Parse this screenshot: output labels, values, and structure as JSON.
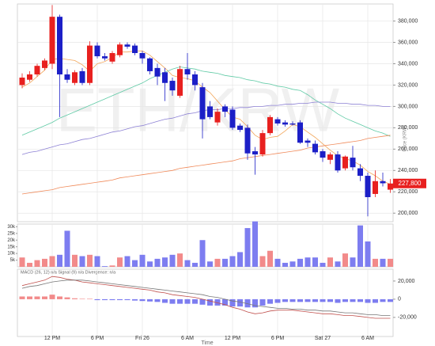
{
  "chart_data": [
    {
      "type": "candlestick",
      "title": "ETH/KRW",
      "y_label": "Price (KRW)",
      "x_label": "Time",
      "categories": [
        null,
        null,
        null,
        null,
        "12 PM",
        null,
        null,
        null,
        null,
        null,
        "6 PM",
        null,
        null,
        null,
        null,
        null,
        "Fri 26",
        null,
        null,
        null,
        null,
        null,
        "6 AM",
        null,
        null,
        null,
        null,
        null,
        "12 PM",
        null,
        null,
        null,
        null,
        null,
        "6 PM",
        null,
        null,
        null,
        null,
        null,
        "Sat 27",
        null,
        null,
        null,
        null,
        null,
        "6 AM",
        null,
        null,
        null
      ],
      "open": [
        320000,
        325000,
        330000,
        336000,
        340000,
        384000,
        330000,
        322000,
        333000,
        322000,
        357000,
        347000,
        342000,
        348000,
        358000,
        357000,
        350000,
        345000,
        336000,
        332000,
        324000,
        310000,
        335000,
        330000,
        318000,
        300000,
        285000,
        300000,
        297000,
        282000,
        280000,
        258000,
        255000,
        275000,
        288000,
        285000,
        284000,
        285000,
        268000,
        265000,
        258000,
        250000,
        255000,
        242000,
        252000,
        242000,
        235000,
        218000,
        230000,
        222000
      ],
      "high": [
        331000,
        333000,
        340000,
        345000,
        395000,
        386000,
        335000,
        334000,
        336000,
        361000,
        360000,
        350000,
        352000,
        360000,
        360000,
        359000,
        352000,
        346000,
        340000,
        336000,
        327000,
        338000,
        350000,
        333000,
        322000,
        305000,
        298000,
        302000,
        300000,
        284000,
        283000,
        262000,
        278000,
        292000,
        290000,
        287000,
        286000,
        287000,
        270000,
        268000,
        260000,
        257000,
        258000,
        254000,
        263000,
        246000,
        238000,
        240000,
        238000,
        232000
      ],
      "low": [
        317000,
        323000,
        328000,
        334000,
        335000,
        290000,
        322000,
        320000,
        320000,
        320000,
        345000,
        343000,
        340000,
        346000,
        354000,
        348000,
        340000,
        330000,
        320000,
        305000,
        310000,
        308000,
        325000,
        315000,
        270000,
        288000,
        282000,
        290000,
        278000,
        276000,
        250000,
        236000,
        253000,
        273000,
        282000,
        281000,
        282000,
        265000,
        262000,
        255000,
        248000,
        246000,
        238000,
        240000,
        240000,
        230000,
        197000,
        215000,
        225000,
        219000
      ],
      "close": [
        327000,
        330000,
        338000,
        343000,
        384000,
        330000,
        325000,
        332000,
        322000,
        357000,
        347000,
        345000,
        350000,
        358000,
        356000,
        350000,
        345000,
        333000,
        328000,
        322000,
        315000,
        335000,
        330000,
        320000,
        288000,
        290000,
        295000,
        295000,
        280000,
        278000,
        256000,
        255000,
        275000,
        290000,
        284000,
        283000,
        283000,
        266000,
        266000,
        257000,
        252000,
        255000,
        240000,
        253000,
        243000,
        235000,
        215000,
        230000,
        228000,
        227800
      ],
      "up_color": "#e8201f",
      "down_color": "#1c1fc7",
      "last_price": {
        "value": 227800,
        "label": "227,800"
      },
      "series": [
        {
          "color": "#f2a65a",
          "values": [
            318000,
            322000,
            328000,
            334000,
            344000,
            345000,
            344000,
            343000,
            339000,
            333000,
            340000,
            342000,
            346000,
            351000,
            351000,
            352000,
            352000,
            348000,
            342000,
            336000,
            329000,
            327000,
            326000,
            324000,
            318000,
            313000,
            305000,
            297000,
            290000,
            288000,
            281000,
            273000,
            269000,
            271000,
            272000,
            277000,
            283000,
            281000,
            276000,
            271000,
            265000,
            259000,
            254000,
            251000,
            249000,
            245000,
            239000,
            235000,
            230000,
            227000
          ]
        },
        {
          "color": "#5fcaa5",
          "values": [
            273000,
            276000,
            279000,
            282000,
            285000,
            289000,
            292000,
            295000,
            298000,
            301000,
            304000,
            307000,
            310000,
            313000,
            316000,
            319000,
            322000,
            326000,
            329000,
            332000,
            335000,
            337000,
            336000,
            335000,
            333000,
            332000,
            331000,
            329000,
            328000,
            327000,
            325000,
            324000,
            322000,
            321000,
            319000,
            318000,
            316000,
            315000,
            311000,
            306000,
            302000,
            298000,
            293000,
            289000,
            286000,
            283000,
            280000,
            277000,
            275000,
            272000
          ]
        },
        {
          "color": "#8c80d4",
          "values": [
            255000,
            257000,
            258000,
            260000,
            262000,
            264000,
            265000,
            267000,
            269000,
            270000,
            272000,
            274000,
            276000,
            277000,
            279000,
            281000,
            282000,
            284000,
            286000,
            288000,
            289000,
            291000,
            293000,
            294000,
            296000,
            297000,
            297000,
            298000,
            298000,
            299000,
            299000,
            300000,
            300000,
            301000,
            301000,
            302000,
            302000,
            303000,
            303000,
            304000,
            304000,
            304000,
            303000,
            303000,
            302000,
            302000,
            301000,
            301000,
            300000,
            300000
          ]
        },
        {
          "color": "#f08a5a",
          "values": [
            218000,
            219000,
            220000,
            221000,
            222000,
            224000,
            225000,
            226000,
            227000,
            228000,
            229000,
            230000,
            231000,
            233000,
            234000,
            235000,
            236000,
            237000,
            238000,
            239000,
            240000,
            242000,
            243000,
            244000,
            245000,
            246000,
            247000,
            248000,
            249000,
            251000,
            252000,
            253000,
            254000,
            255000,
            256000,
            257000,
            258000,
            259000,
            261000,
            262000,
            263000,
            264000,
            265000,
            266000,
            267000,
            268000,
            270000,
            271000,
            272000,
            273000
          ]
        }
      ],
      "ylim": [
        192000,
        396000
      ],
      "yticks": [
        {
          "value": 200000,
          "label": "200,000"
        },
        {
          "value": 220000,
          "label": "220,000"
        },
        {
          "value": 240000,
          "label": "240,000"
        },
        {
          "value": 260000,
          "label": "260,000"
        },
        {
          "value": 280000,
          "label": "280,000"
        },
        {
          "value": 300000,
          "label": "300,000"
        },
        {
          "value": 320000,
          "label": "320,000"
        },
        {
          "value": 340000,
          "label": "340,000"
        },
        {
          "value": 360000,
          "label": "360,000"
        },
        {
          "value": 380000,
          "label": "380,000"
        }
      ],
      "grid": true
    },
    {
      "type": "bar",
      "values": [
        7000,
        3000,
        5000,
        6000,
        8000,
        9000,
        27000,
        9000,
        8000,
        9000,
        8000,
        500,
        1000,
        7000,
        8000,
        5000,
        9000,
        4000,
        6000,
        7000,
        9000,
        10000,
        5000,
        3000,
        20000,
        4000,
        6000,
        6000,
        8000,
        11000,
        29000,
        34000,
        8000,
        12000,
        6000,
        3000,
        4000,
        6000,
        7000,
        7000,
        3000,
        7000,
        4000,
        10000,
        7000,
        31000,
        19000,
        6000,
        6000,
        6000
      ],
      "up_color": "#f28a8a",
      "down_color": "#7d7df0",
      "ylim": [
        0,
        32000
      ],
      "yticks": [
        {
          "value": 5000,
          "label": "5k"
        },
        {
          "value": 10000,
          "label": "10k"
        },
        {
          "value": 15000,
          "label": "15k"
        },
        {
          "value": 20000,
          "label": "20k"
        },
        {
          "value": 25000,
          "label": "25k"
        },
        {
          "value": 30000,
          "label": "30k"
        }
      ]
    },
    {
      "type": "macd",
      "legend": "MACD (26, 12) n/a  Signal (9) n/a  Divergence: n/a",
      "histogram": [
        3000,
        3000,
        3000,
        3000,
        5000,
        3000,
        2000,
        1000,
        500,
        500,
        -1000,
        -1000,
        -1000,
        -1000,
        -1000,
        -1500,
        -2000,
        -2500,
        -3000,
        -4000,
        -5000,
        -5000,
        -5000,
        -5000,
        -6000,
        -7000,
        -7000,
        -7000,
        -8000,
        -8000,
        -9000,
        -9000,
        -7000,
        -5000,
        -4000,
        -3000,
        -3000,
        -3000,
        -3000,
        -3000,
        -3000,
        -3000,
        -4000,
        -3000,
        -3000,
        -3000,
        -4000,
        -4000,
        -3000,
        -3000
      ],
      "up_color": "#f28a8a",
      "down_color": "#7d7df0",
      "series": [
        {
          "color": "#c0504d",
          "values": [
            15000,
            17000,
            19000,
            21000,
            25000,
            24000,
            22000,
            21000,
            19000,
            18000,
            17000,
            16000,
            15000,
            14000,
            13000,
            12000,
            11000,
            10000,
            8000,
            7000,
            5000,
            4000,
            3000,
            2000,
            0,
            -2000,
            -4000,
            -6000,
            -9000,
            -11000,
            -14000,
            -16000,
            -15000,
            -13000,
            -12000,
            -12000,
            -12000,
            -13000,
            -14000,
            -15000,
            -16000,
            -16000,
            -17000,
            -18000,
            -18000,
            -19000,
            -20000,
            -21000,
            -21000,
            -21000
          ]
        },
        {
          "color": "#777777",
          "values": [
            12000,
            14000,
            15000,
            17000,
            19000,
            20000,
            21000,
            21000,
            21000,
            20000,
            19000,
            18000,
            17000,
            16000,
            15000,
            14000,
            13000,
            12000,
            11000,
            10000,
            9000,
            8000,
            7000,
            6000,
            5000,
            3000,
            2000,
            0,
            -2000,
            -3000,
            -5000,
            -7000,
            -8000,
            -9000,
            -10000,
            -10000,
            -11000,
            -11000,
            -12000,
            -12000,
            -13000,
            -13000,
            -14000,
            -15000,
            -15000,
            -16000,
            -17000,
            -17000,
            -18000,
            -18000
          ]
        }
      ],
      "ylim": [
        -41000,
        33000
      ],
      "yticks": [
        {
          "value": -20000,
          "label": "-20,000"
        },
        0,
        {
          "value": 20000,
          "label": "20,000"
        }
      ]
    }
  ]
}
